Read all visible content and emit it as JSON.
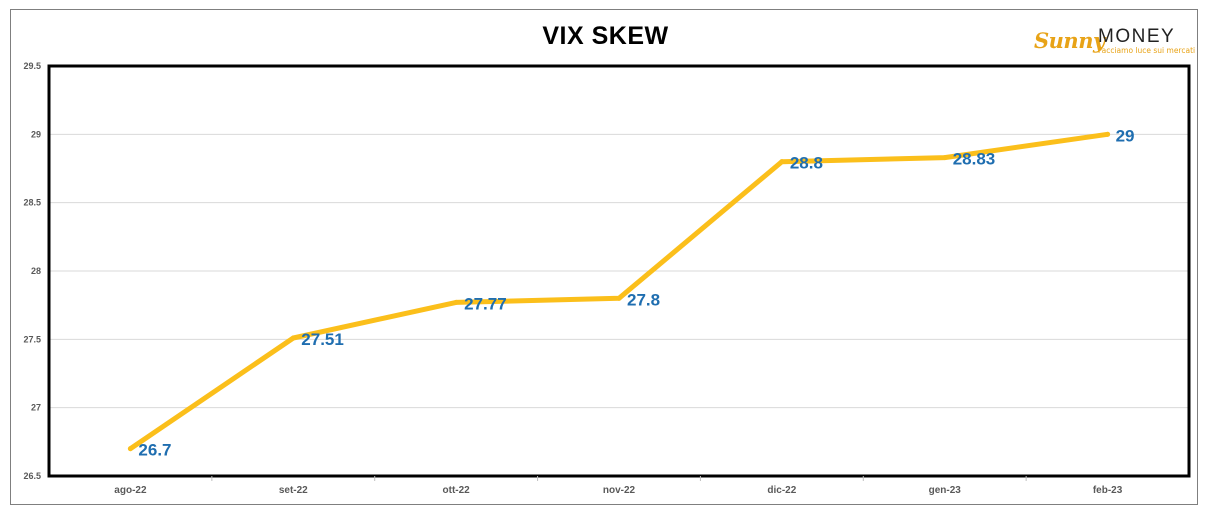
{
  "chart_data": {
    "type": "line",
    "title": "VIX SKEW",
    "categories": [
      "ago-22",
      "set-22",
      "ott-22",
      "nov-22",
      "dic-22",
      "gen-23",
      "feb-23"
    ],
    "series": [
      {
        "values": [
          26.7,
          27.51,
          27.77,
          27.8,
          28.8,
          28.83,
          29
        ],
        "labels": [
          "26.7",
          "27.51",
          "27.77",
          "27.8",
          "28.8",
          "28.83",
          "29"
        ]
      }
    ],
    "xlabel": "",
    "ylabel": "",
    "ylim": [
      26.5,
      29.5
    ],
    "yticks": [
      "26.5",
      "27",
      "27.5",
      "28",
      "28.5",
      "29",
      "29.5"
    ],
    "grid": true,
    "legend": "none",
    "colors": {
      "line": "#fbbf1b",
      "data_label": "#1f6eb0",
      "grid": "#d9d9d9",
      "plot_border": "#000000"
    }
  },
  "logo": {
    "brand_left": "Sunny",
    "brand_right": "MONEY",
    "tagline": "Facciamo luce sui mercati"
  }
}
